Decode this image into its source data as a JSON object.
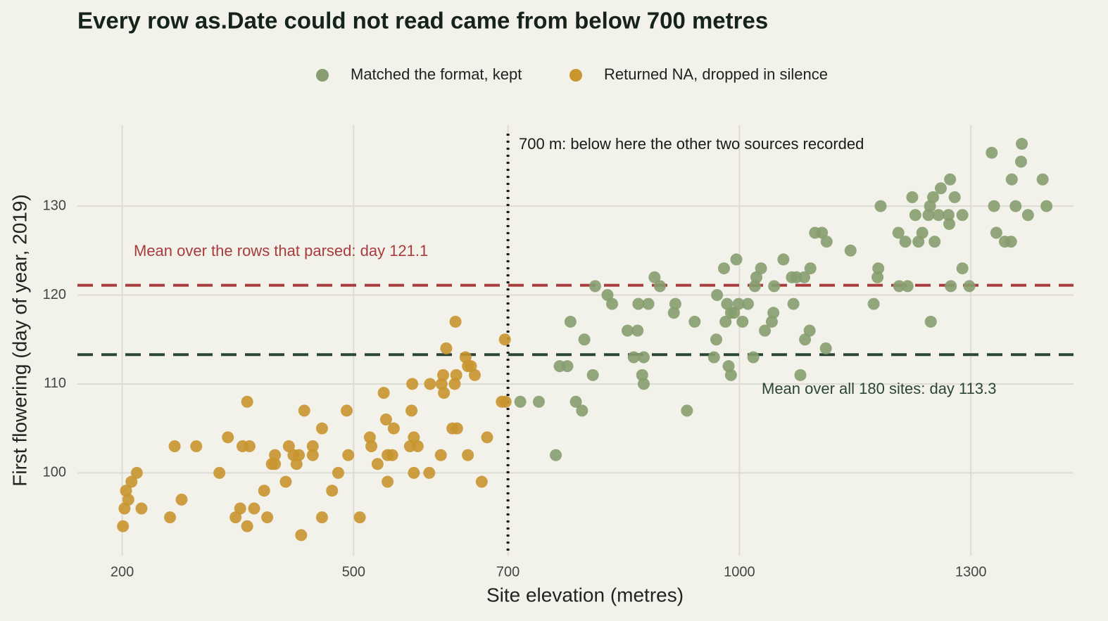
{
  "chart_data": {
    "type": "scatter",
    "title": "Every row as.Date could not read came from below 700 metres",
    "x_label": "Site elevation (metres)",
    "y_label": "First flowering (day of year, 2019)",
    "xlim": [
      142,
      1433
    ],
    "ylim": [
      90.7,
      139.1
    ],
    "xticks": [
      200,
      500,
      700,
      1000,
      1300
    ],
    "yticks": [
      100,
      110,
      120,
      130
    ],
    "grid": true,
    "legend": "top",
    "reference_lines": [
      {
        "axis": "x",
        "value": 700,
        "color": "#1a1a1a",
        "label": "700 m: below here the other two sources recorded"
      },
      {
        "axis": "y",
        "value": 121.1,
        "color": "#a83c3c",
        "label": "Mean over the rows that parsed: day 121.1"
      },
      {
        "axis": "y",
        "value": 113.3,
        "color": "#2b4636",
        "label": "Mean over all 180 sites: day 113.3"
      }
    ],
    "series": [
      {
        "name": "Matched the format, kept",
        "color": "#869d6f",
        "x": [
          716,
          740,
          762,
          767,
          777,
          781,
          788,
          796,
          799,
          810,
          813,
          829,
          835,
          855,
          863,
          868,
          869,
          874,
          876,
          876,
          882,
          890,
          897,
          915,
          917,
          932,
          942,
          967,
          970,
          971,
          980,
          982,
          984,
          986,
          989,
          989,
          993,
          996,
          999,
          1004,
          1011,
          1018,
          1020,
          1022,
          1028,
          1033,
          1042,
          1044,
          1045,
          1057,
          1068,
          1070,
          1074,
          1079,
          1084,
          1085,
          1091,
          1092,
          1098,
          1107,
          1112,
          1113,
          1144,
          1174,
          1179,
          1180,
          1183,
          1206,
          1207,
          1215,
          1218,
          1224,
          1228,
          1232,
          1237,
          1245,
          1247,
          1248,
          1251,
          1253,
          1258,
          1261,
          1271,
          1272,
          1273,
          1274,
          1279,
          1289,
          1289,
          1298,
          1327,
          1330,
          1333,
          1344,
          1352,
          1353,
          1358,
          1365,
          1366,
          1374,
          1393,
          1398
        ],
        "values": [
          108,
          108,
          102,
          112,
          112,
          117,
          108,
          107,
          115,
          111,
          121,
          120,
          119,
          116,
          113,
          116,
          119,
          111,
          110,
          113,
          119,
          122,
          121,
          118,
          119,
          107,
          117,
          113,
          115,
          120,
          123,
          117,
          119,
          112,
          111,
          118,
          118,
          124,
          119,
          117,
          119,
          113,
          121,
          122,
          123,
          116,
          117,
          118,
          121,
          124,
          122,
          119,
          122,
          111,
          122,
          115,
          116,
          123,
          127,
          127,
          114,
          126,
          125,
          119,
          122,
          123,
          130,
          127,
          121,
          126,
          121,
          131,
          129,
          126,
          127,
          129,
          130,
          117,
          131,
          126,
          129,
          132,
          129,
          128,
          133,
          121,
          131,
          123,
          129,
          121,
          136,
          130,
          127,
          126,
          126,
          133,
          130,
          135,
          137,
          129,
          133,
          130
        ]
      },
      {
        "name": "Returned NA, dropped in silence",
        "color": "#c8952f",
        "x": [
          201,
          203,
          205,
          208,
          212,
          219,
          225,
          262,
          268,
          277,
          296,
          326,
          337,
          347,
          353,
          356,
          362,
          362,
          365,
          371,
          384,
          388,
          394,
          398,
          398,
          412,
          416,
          422,
          426,
          429,
          432,
          436,
          447,
          447,
          459,
          459,
          472,
          480,
          491,
          493,
          508,
          521,
          523,
          531,
          539,
          542,
          544,
          544,
          550,
          552,
          573,
          575,
          576,
          578,
          578,
          583,
          598,
          599,
          613,
          614,
          616,
          617,
          620,
          628,
          631,
          632,
          633,
          634,
          645,
          648,
          648,
          652,
          657,
          666,
          673,
          692,
          696,
          697
        ],
        "values": [
          94,
          96,
          98,
          97,
          99,
          100,
          96,
          95,
          103,
          97,
          103,
          100,
          104,
          95,
          96,
          103,
          108,
          94,
          103,
          96,
          98,
          95,
          101,
          102,
          101,
          99,
          103,
          102,
          101,
          102,
          93,
          107,
          103,
          102,
          95,
          105,
          98,
          100,
          107,
          102,
          95,
          104,
          103,
          101,
          109,
          106,
          99,
          102,
          102,
          105,
          103,
          107,
          110,
          104,
          100,
          103,
          100,
          110,
          102,
          110,
          111,
          109,
          114,
          105,
          110,
          117,
          111,
          105,
          113,
          112,
          102,
          112,
          111,
          99,
          104,
          108,
          115,
          108
        ]
      }
    ]
  }
}
